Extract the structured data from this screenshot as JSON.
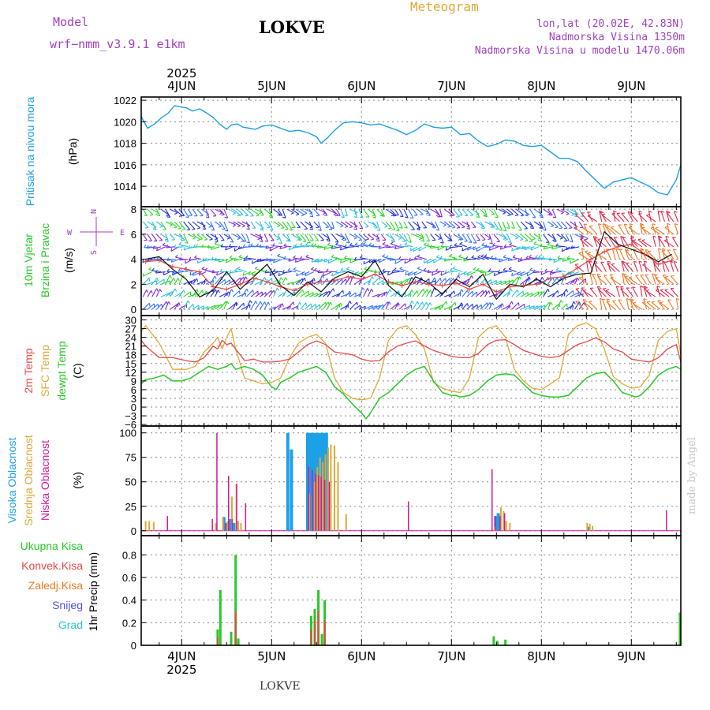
{
  "header": {
    "model_label": "Model",
    "model_name": "wrf−nmm_v3.9.1  e1km",
    "station": "LOKVE",
    "product": "Meteogram",
    "coords": "lon,lat (20.02E, 42.83N)",
    "elevation": "Nadmorska Visina 1350m",
    "model_elevation": "Nadmorska Visina u modelu 1470.06m",
    "footer_station": "LOKVE",
    "credit": "made by Angel"
  },
  "colors": {
    "pressure": "#1ca0e6",
    "t2m": "#e84848",
    "sfc_temp": "#e0a838",
    "dewpoint": "#28c828",
    "cloud_high": "#1ca0e6",
    "cloud_mid": "#e0a838",
    "cloud_low": "#d0189c",
    "precip_total": "#28c828",
    "precip_conv": "#e84848",
    "precip_frozen": "#f07820",
    "precip_snow": "#5050e0",
    "precip_graupel": "#28c8c8",
    "wind_speed": "#111111",
    "wind_gust": "#e84848",
    "compass": "#a040c0",
    "model_text": "#a040c0",
    "product_text": "#e0a838",
    "credit_text": "#c8c8c8"
  },
  "chart_data": [
    {
      "type": "line",
      "panel": "pressure",
      "ylabel_title": "Pritisak na nivou mora",
      "ylabel_unit": "(hPa)",
      "x_unit": "day",
      "x_top_labels": [
        "4JUN",
        "5JUN",
        "6JUN",
        "7JUN",
        "8JUN",
        "9JUN"
      ],
      "x_top_year": "2025",
      "xlim": [
        3.55,
        9.55
      ],
      "ylim": [
        1012.1,
        1022.3
      ],
      "yticks": [
        1014,
        1016,
        1018,
        1020,
        1022
      ],
      "grid": true,
      "series": [
        {
          "name": "",
          "x": [
            3.55,
            3.62,
            3.7,
            3.78,
            3.85,
            3.92,
            3.98,
            4.05,
            4.12,
            4.2,
            4.28,
            4.35,
            4.42,
            4.5,
            4.55,
            4.62,
            4.68,
            4.75,
            4.82,
            4.9,
            5.0,
            5.1,
            5.2,
            5.3,
            5.4,
            5.5,
            5.55,
            5.62,
            5.7,
            5.8,
            5.9,
            6.0,
            6.1,
            6.2,
            6.3,
            6.4,
            6.5,
            6.6,
            6.7,
            6.8,
            6.9,
            7.0,
            7.1,
            7.2,
            7.3,
            7.4,
            7.5,
            7.6,
            7.7,
            7.8,
            7.9,
            8.0,
            8.1,
            8.2,
            8.3,
            8.4,
            8.5,
            8.6,
            8.7,
            8.8,
            8.9,
            9.0,
            9.1,
            9.2,
            9.3,
            9.4,
            9.5,
            9.55
          ],
          "y": [
            1020.5,
            1019.4,
            1019.8,
            1020.4,
            1020.8,
            1021.5,
            1021.4,
            1021.3,
            1021.0,
            1021.2,
            1020.8,
            1020.4,
            1019.8,
            1019.3,
            1019.7,
            1019.8,
            1019.5,
            1019.4,
            1019.3,
            1019.6,
            1019.7,
            1019.4,
            1019.1,
            1019.2,
            1019.0,
            1018.6,
            1018.0,
            1018.5,
            1019.2,
            1019.9,
            1020.0,
            1019.9,
            1019.7,
            1019.8,
            1019.5,
            1019.2,
            1018.8,
            1019.2,
            1019.8,
            1019.5,
            1019.4,
            1019.5,
            1018.8,
            1018.9,
            1018.2,
            1017.7,
            1017.9,
            1018.3,
            1018.2,
            1017.8,
            1017.7,
            1017.8,
            1017.2,
            1016.6,
            1016.6,
            1016.3,
            1015.4,
            1014.6,
            1013.8,
            1014.4,
            1014.6,
            1014.8,
            1014.4,
            1014.0,
            1013.4,
            1013.2,
            1014.6,
            1016.0
          ]
        }
      ]
    },
    {
      "type": "line",
      "panel": "wind",
      "ylabel_title_1": "10m  Vjetar",
      "ylabel_title_2": "Brzina  i  Pravac",
      "ylabel_unit": "(m/s)",
      "compass": {
        "north": "N",
        "south": "S",
        "west": "W",
        "east": "E"
      },
      "x_unit": "day",
      "xlim": [
        3.55,
        9.55
      ],
      "ylim": [
        -0.5,
        8.2
      ],
      "yticks": [
        0,
        2,
        4,
        6,
        8
      ],
      "grid": true,
      "series": [
        {
          "name": "",
          "x": [
            3.6,
            3.75,
            3.9,
            4.05,
            4.2,
            4.35,
            4.5,
            4.65,
            4.8,
            4.95,
            5.1,
            5.25,
            5.4,
            5.55,
            5.7,
            5.85,
            6.0,
            6.15,
            6.3,
            6.45,
            6.6,
            6.75,
            6.9,
            7.05,
            7.2,
            7.35,
            7.5,
            7.65,
            7.8,
            7.95,
            8.1,
            8.25,
            8.4,
            8.55,
            8.7,
            8.85,
            9.0,
            9.15,
            9.3,
            9.45
          ],
          "y": [
            4.0,
            4.2,
            3.2,
            2.4,
            1.0,
            1.5,
            3.0,
            1.6,
            2.6,
            3.6,
            1.9,
            1.1,
            2.2,
            1.4,
            2.5,
            3.0,
            2.6,
            3.9,
            1.9,
            1.0,
            2.6,
            2.1,
            1.2,
            2.4,
            1.8,
            2.8,
            0.8,
            2.0,
            1.8,
            2.4,
            1.8,
            2.5,
            2.8,
            2.9,
            6.2,
            5.2,
            4.8,
            4.4,
            3.8,
            4.4
          ]
        },
        {
          "name": "",
          "x": [
            3.6,
            3.75,
            3.9,
            4.05,
            4.2,
            4.35,
            4.5,
            4.65,
            4.8,
            4.95,
            5.1,
            5.25,
            5.4,
            5.55,
            5.7,
            5.85,
            6.0,
            6.15,
            6.3,
            6.45,
            6.6,
            6.75,
            6.9,
            7.05,
            7.2,
            7.35,
            7.5,
            7.65,
            7.8,
            7.95,
            8.1,
            8.25,
            8.4,
            8.55,
            8.7,
            8.85,
            9.0,
            9.15,
            9.3,
            9.45
          ],
          "y": [
            3.8,
            3.9,
            3.4,
            3.2,
            3.0,
            1.8,
            1.6,
            2.0,
            2.5,
            2.2,
            1.8,
            1.5,
            2.0,
            2.2,
            2.3,
            2.6,
            2.4,
            2.8,
            2.2,
            1.9,
            2.2,
            2.0,
            1.9,
            2.1,
            1.6,
            2.0,
            1.4,
            1.8,
            1.9,
            2.0,
            2.5,
            2.6,
            3.3,
            4.0,
            4.6,
            5.0,
            5.2,
            4.4,
            3.6,
            3.9
          ]
        }
      ]
    },
    {
      "type": "line",
      "panel": "temperature",
      "ylabel_t2m": "2m Temp",
      "ylabel_sfc": "SFC Temp",
      "ylabel_dew": "dewpt Temp",
      "ylabel_unit": "(C)",
      "x_unit": "day",
      "xlim": [
        3.55,
        9.55
      ],
      "ylim": [
        -6.5,
        31.5
      ],
      "yticks": [
        -6,
        -3,
        0,
        3,
        6,
        9,
        12,
        15,
        18,
        21,
        24,
        27,
        30
      ],
      "ytick_labels": [
        "−6",
        "−3",
        "0",
        "3",
        "6",
        "9",
        "12",
        "15",
        "18",
        "21",
        "24",
        "27",
        "30"
      ],
      "grid": true,
      "series": [
        {
          "name": "",
          "x": [
            3.55,
            3.6,
            3.75,
            3.9,
            4.05,
            4.15,
            4.25,
            4.35,
            4.4,
            4.45,
            4.5,
            4.55,
            4.6,
            4.7,
            4.8,
            4.9,
            5.0,
            5.1,
            5.2,
            5.3,
            5.4,
            5.5,
            5.6,
            5.7,
            5.8,
            5.9,
            6.0,
            6.1,
            6.2,
            6.3,
            6.4,
            6.5,
            6.6,
            6.7,
            6.8,
            6.9,
            7.0,
            7.1,
            7.2,
            7.3,
            7.4,
            7.5,
            7.6,
            7.7,
            7.8,
            7.9,
            8.0,
            8.1,
            8.2,
            8.3,
            8.4,
            8.5,
            8.6,
            8.7,
            8.8,
            8.9,
            9.0,
            9.1,
            9.2,
            9.3,
            9.4,
            9.5,
            9.55
          ],
          "y": [
            23,
            21,
            17,
            17,
            16,
            15.5,
            17,
            21,
            20,
            23,
            21.5,
            22,
            20,
            16,
            16.5,
            15.5,
            15.5,
            15.8,
            16.5,
            19,
            21.5,
            22.8,
            21.5,
            19,
            18.5,
            18,
            16.5,
            15.8,
            16,
            19,
            21,
            22,
            22.8,
            21,
            19.5,
            18.5,
            17.5,
            17,
            17,
            18.5,
            21.5,
            23,
            23.2,
            21.5,
            19.5,
            18.5,
            17.5,
            17,
            17.5,
            19.5,
            21.5,
            22.5,
            23.8,
            22.5,
            20,
            19,
            16.5,
            16,
            15.5,
            17,
            20,
            21.5,
            15.5
          ]
        },
        {
          "name": "",
          "x": [
            3.55,
            3.6,
            3.75,
            3.9,
            4.05,
            4.15,
            4.25,
            4.35,
            4.4,
            4.45,
            4.5,
            4.55,
            4.6,
            4.7,
            4.8,
            4.9,
            5.0,
            5.1,
            5.2,
            5.3,
            5.4,
            5.5,
            5.6,
            5.7,
            5.8,
            5.9,
            6.0,
            6.1,
            6.2,
            6.3,
            6.4,
            6.5,
            6.6,
            6.7,
            6.8,
            6.9,
            7.0,
            7.1,
            7.2,
            7.3,
            7.4,
            7.5,
            7.6,
            7.7,
            7.8,
            7.9,
            8.0,
            8.1,
            8.2,
            8.3,
            8.4,
            8.5,
            8.6,
            8.7,
            8.8,
            8.9,
            9.0,
            9.1,
            9.2,
            9.3,
            9.4,
            9.5,
            9.55
          ],
          "y": [
            26,
            28,
            22,
            13,
            13,
            14,
            19,
            22,
            24,
            20,
            24,
            27,
            20,
            10,
            9,
            8,
            8.5,
            10,
            17,
            22,
            24,
            25,
            22,
            10,
            5,
            3,
            2.5,
            3,
            10,
            23,
            27,
            28,
            25,
            20,
            8.5,
            6.5,
            5.5,
            5,
            10,
            24,
            27,
            28,
            24,
            13,
            9,
            6.5,
            6,
            8,
            10,
            25,
            28,
            29,
            27,
            20,
            10.5,
            8,
            6.5,
            7,
            11,
            23,
            26,
            27,
            18
          ]
        },
        {
          "name": "",
          "x": [
            3.55,
            3.6,
            3.7,
            3.8,
            3.9,
            4.0,
            4.1,
            4.2,
            4.3,
            4.4,
            4.5,
            4.55,
            4.6,
            4.7,
            4.8,
            4.9,
            5.0,
            5.05,
            5.1,
            5.2,
            5.3,
            5.4,
            5.5,
            5.6,
            5.7,
            5.8,
            5.9,
            6.0,
            6.05,
            6.1,
            6.2,
            6.3,
            6.4,
            6.5,
            6.6,
            6.7,
            6.8,
            6.9,
            7.0,
            7.05,
            7.1,
            7.2,
            7.3,
            7.4,
            7.5,
            7.6,
            7.7,
            7.8,
            7.9,
            8.0,
            8.1,
            8.2,
            8.3,
            8.4,
            8.5,
            8.6,
            8.7,
            8.8,
            8.9,
            9.0,
            9.05,
            9.1,
            9.2,
            9.3,
            9.4,
            9.5,
            9.55
          ],
          "y": [
            8,
            9.5,
            10,
            11,
            9,
            9,
            10,
            12,
            14,
            13,
            14,
            15,
            13,
            14,
            13,
            11,
            7,
            6,
            8.5,
            10,
            12,
            13,
            14,
            12,
            7,
            4.5,
            1,
            -2,
            -4,
            -2,
            3,
            5,
            8,
            11,
            13,
            14,
            9,
            5,
            4,
            4,
            3.5,
            4,
            6,
            9,
            11,
            11.5,
            11,
            8,
            5,
            4,
            3.5,
            3.5,
            4,
            7,
            10,
            11.5,
            12,
            9,
            5,
            4,
            3.5,
            4,
            7,
            11,
            13,
            14,
            13
          ]
        }
      ]
    },
    {
      "type": "bar",
      "panel": "clouds",
      "ylabel_high": "Visoka Oblacnost",
      "ylabel_mid": "Srednja Oblacnost",
      "ylabel_low": "Niska  Oblacnost",
      "ylabel_unit": "(%)",
      "x_unit": "day",
      "xlim": [
        3.55,
        9.55
      ],
      "ylim": [
        -5,
        107
      ],
      "yticks": [
        0,
        25,
        50,
        75,
        100
      ],
      "grid": true,
      "series": [
        {
          "name": "",
          "x": [
            5.18,
            5.22,
            5.4,
            5.43,
            5.46,
            5.49,
            5.52,
            5.55,
            5.58,
            5.61,
            4.47,
            4.5,
            4.54,
            4.58,
            7.49,
            7.52,
            8.52
          ],
          "values": [
            100,
            83,
            100,
            100,
            100,
            100,
            100,
            100,
            100,
            100,
            14,
            8,
            12,
            8,
            15,
            18,
            4
          ]
        },
        {
          "name": "",
          "x": [
            3.59,
            3.63,
            3.68,
            4.37,
            4.45,
            4.5,
            4.55,
            4.6,
            4.62,
            4.65,
            5.41,
            5.44,
            5.47,
            5.5,
            5.53,
            5.56,
            5.59,
            5.62,
            5.65,
            5.69,
            5.73,
            5.82,
            7.47,
            7.54,
            7.57,
            7.6,
            7.64,
            8.5,
            8.53,
            8.56
          ],
          "values": [
            10,
            10,
            9,
            8,
            13,
            10,
            35,
            48,
            10,
            8,
            38,
            35,
            50,
            65,
            75,
            70,
            78,
            85,
            88,
            87,
            70,
            17,
            4,
            24,
            20,
            10,
            8,
            8,
            7,
            5
          ]
        },
        {
          "name": "",
          "x": [
            3.85,
            4.35,
            4.4,
            4.5,
            4.53,
            4.57,
            4.62,
            4.72,
            5.42,
            5.46,
            5.5,
            5.53,
            5.56,
            5.6,
            5.65,
            6.53,
            7.46,
            7.5,
            7.55,
            7.6,
            9.4
          ],
          "values": [
            15,
            12,
            100,
            8,
            56,
            12,
            48,
            28,
            65,
            62,
            58,
            57,
            55,
            52,
            50,
            30,
            63,
            15,
            15,
            18,
            21
          ]
        }
      ]
    },
    {
      "type": "bar",
      "panel": "precipitation",
      "ylabel_unit": "1hr  Precip  (mm)",
      "legend_total": "Ukupna  Kisa",
      "legend_conv": "Konvek.Kisa",
      "legend_frozen": "Zaledj.Kisa",
      "legend_snow": "Snijeg",
      "legend_graupel": "Grad",
      "x_unit": "day",
      "x_bottom_labels": [
        "4JUN",
        "5JUN",
        "6JUN",
        "7JUN",
        "8JUN",
        "9JUN"
      ],
      "x_bottom_year": "2025",
      "xlim": [
        3.55,
        9.55
      ],
      "ylim": [
        0,
        0.97
      ],
      "yticks": [
        0,
        0.2,
        0.4,
        0.6,
        0.8
      ],
      "grid": true,
      "series": [
        {
          "name": "",
          "x": [
            4.4,
            4.43,
            4.55,
            4.6,
            4.63,
            5.44,
            5.48,
            5.52,
            5.56,
            5.59,
            7.47,
            7.51,
            7.6,
            9.54
          ],
          "values": [
            0.14,
            0.49,
            0.12,
            0.8,
            0.06,
            0.26,
            0.32,
            0.49,
            0.1,
            0.4,
            0.08,
            0.04,
            0.05,
            0.29
          ]
        },
        {
          "name": "",
          "x": [
            4.4,
            4.6,
            5.44,
            5.48,
            5.52,
            5.59
          ],
          "values": [
            0.07,
            0.3,
            0.14,
            0.22,
            0.3,
            0.22
          ]
        }
      ]
    }
  ]
}
